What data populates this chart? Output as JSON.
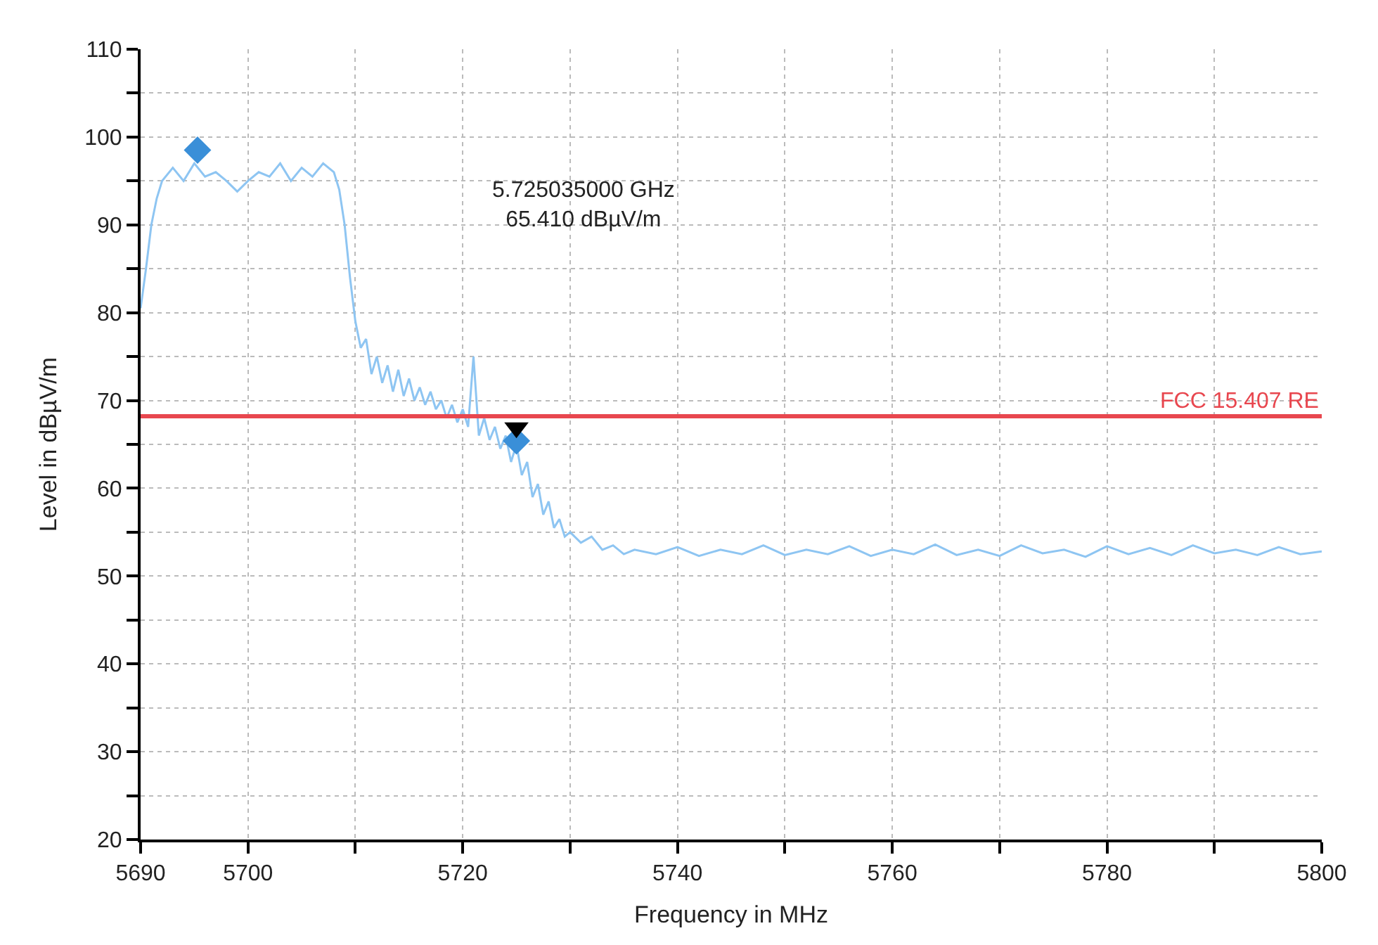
{
  "chart_data": {
    "type": "line",
    "xlabel": "Frequency in MHz",
    "ylabel": "Level in dBµV/m",
    "xlim": [
      5690,
      5800
    ],
    "xticks": [
      5690,
      5700,
      {
        "value": 5710,
        "label": null
      },
      5720,
      {
        "value": 5730,
        "label": null
      },
      5740,
      {
        "value": 5750,
        "label": null
      },
      5760,
      {
        "value": 5770,
        "label": null
      },
      5780,
      {
        "value": 5790,
        "label": null
      },
      5800
    ],
    "ylim": [
      20,
      110
    ],
    "yticks": [
      20,
      {
        "value": 25,
        "label": null
      },
      30,
      {
        "value": 35,
        "label": null
      },
      40,
      {
        "value": 45,
        "label": null
      },
      50,
      {
        "value": 55,
        "label": null
      },
      60,
      {
        "value": 65,
        "label": null
      },
      70,
      {
        "value": 75,
        "label": null
      },
      80,
      {
        "value": 85,
        "label": null
      },
      90,
      {
        "value": 95,
        "label": null
      },
      100,
      {
        "value": 105,
        "label": null
      },
      110
    ],
    "grid": true,
    "series": [
      {
        "color": "#8ec5f2",
        "marker": "none",
        "line_style": "solid",
        "x": [
          5690,
          5690.5,
          5691,
          5691.5,
          5692,
          5693,
          5694,
          5695,
          5696,
          5697,
          5698,
          5699,
          5700,
          5701,
          5702,
          5703,
          5704,
          5705,
          5706,
          5707,
          5708,
          5708.5,
          5709,
          5709.5,
          5710,
          5710.5,
          5711,
          5711.5,
          5712,
          5712.5,
          5713,
          5713.5,
          5714,
          5714.5,
          5715,
          5715.5,
          5716,
          5716.5,
          5717,
          5717.5,
          5718,
          5718.5,
          5719,
          5719.5,
          5720,
          5720.5,
          5721,
          5721.5,
          5722,
          5722.5,
          5723,
          5723.5,
          5724,
          5724.5,
          5725,
          5725.5,
          5726,
          5726.5,
          5727,
          5727.5,
          5728,
          5728.5,
          5729,
          5729.5,
          5730,
          5731,
          5732,
          5733,
          5734,
          5735,
          5736,
          5738,
          5740,
          5742,
          5744,
          5746,
          5748,
          5750,
          5752,
          5754,
          5756,
          5758,
          5760,
          5762,
          5764,
          5766,
          5768,
          5770,
          5772,
          5774,
          5776,
          5778,
          5780,
          5782,
          5784,
          5786,
          5788,
          5790,
          5792,
          5794,
          5796,
          5798,
          5800
        ],
        "values": [
          80.5,
          85,
          90,
          93,
          95,
          96.5,
          95,
          97,
          95.5,
          96,
          95,
          93.8,
          95,
          96,
          95.5,
          97,
          95,
          96.5,
          95.5,
          97,
          96,
          94,
          90,
          84,
          79,
          76,
          77,
          73,
          75,
          72,
          74,
          71,
          73.5,
          70.5,
          72.5,
          70,
          71.5,
          69.5,
          71,
          69,
          70,
          68,
          69.5,
          67.5,
          69,
          67,
          75,
          66,
          68,
          65.5,
          67,
          64.5,
          66,
          63,
          65,
          61.5,
          63,
          59,
          60.5,
          57,
          58.5,
          55.5,
          56.5,
          54.5,
          55,
          53.8,
          54.5,
          53,
          53.5,
          52.5,
          53,
          52.5,
          53.3,
          52.3,
          53,
          52.5,
          53.5,
          52.4,
          53,
          52.5,
          53.4,
          52.3,
          53,
          52.5,
          53.6,
          52.4,
          53,
          52.3,
          53.5,
          52.6,
          53,
          52.2,
          53.4,
          52.5,
          53.2,
          52.4,
          53.5,
          52.6,
          53,
          52.4,
          53.3,
          52.5,
          52.8
        ]
      },
      {
        "type": "scatter",
        "color": "#3a8fd8",
        "marker": "diamond",
        "x": [
          5695.3,
          5725
        ],
        "values": [
          98.5,
          65.4
        ]
      },
      {
        "type": "scatter",
        "color": "#000000",
        "marker": "triangle-down",
        "x": [
          5725
        ],
        "values": [
          66.9
        ]
      }
    ],
    "ref_lines": [
      {
        "axis": "y",
        "value": 68.2,
        "label": "FCC 15.407 RE",
        "color": "#e8474f",
        "line_style": "solid"
      }
    ],
    "annotations": [
      "5.725035000 GHz\n65.410 dBµV/m"
    ]
  }
}
